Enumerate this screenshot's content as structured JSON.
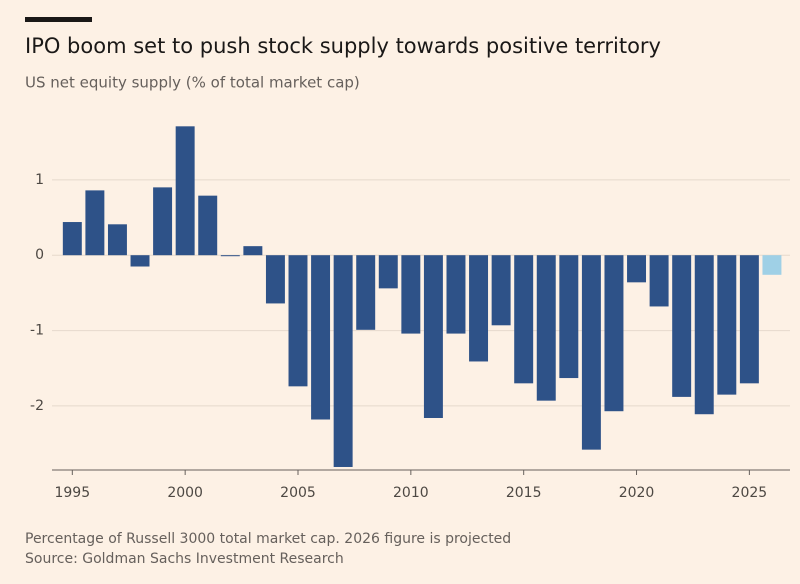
{
  "chart_data": {
    "type": "bar",
    "title": "IPO boom set to push stock supply towards positive territory",
    "subtitle": "US net equity supply (% of total market cap)",
    "footnote": "Percentage of Russell 3000 total market cap. 2026 figure is projected",
    "source": "Source: Goldman Sachs Investment Research",
    "x": [
      1995,
      1996,
      1997,
      1998,
      1999,
      2000,
      2001,
      2002,
      2003,
      2004,
      2005,
      2006,
      2007,
      2008,
      2009,
      2010,
      2011,
      2012,
      2013,
      2014,
      2015,
      2016,
      2017,
      2018,
      2019,
      2020,
      2021,
      2022,
      2023,
      2024,
      2025,
      2026
    ],
    "values": [
      0.44,
      0.86,
      0.41,
      -0.15,
      0.9,
      1.71,
      0.79,
      -0.01,
      0.12,
      -0.64,
      -1.74,
      -2.18,
      -2.81,
      -0.99,
      -0.44,
      -1.04,
      -2.16,
      -1.04,
      -1.41,
      -0.93,
      -1.7,
      -1.93,
      -1.63,
      -2.58,
      -2.07,
      -0.36,
      -0.68,
      -1.88,
      -2.11,
      -1.85,
      -1.7,
      -0.26
    ],
    "colors": [
      "#2e5288",
      "#2e5288",
      "#2e5288",
      "#2e5288",
      "#2e5288",
      "#2e5288",
      "#2e5288",
      "#2e5288",
      "#2e5288",
      "#2e5288",
      "#2e5288",
      "#2e5288",
      "#2e5288",
      "#2e5288",
      "#2e5288",
      "#2e5288",
      "#2e5288",
      "#2e5288",
      "#2e5288",
      "#2e5288",
      "#2e5288",
      "#2e5288",
      "#2e5288",
      "#2e5288",
      "#2e5288",
      "#2e5288",
      "#2e5288",
      "#2e5288",
      "#2e5288",
      "#2e5288",
      "#2e5288",
      "#9fd0e6"
    ],
    "xlim": [
      1994.1,
      2026.8
    ],
    "xticks": [
      1995,
      2000,
      2005,
      2010,
      2015,
      2020,
      2025
    ],
    "ylim": [
      -2.85,
      1.9
    ],
    "yticks": [
      -2,
      -1,
      0,
      1
    ],
    "grid": true
  }
}
